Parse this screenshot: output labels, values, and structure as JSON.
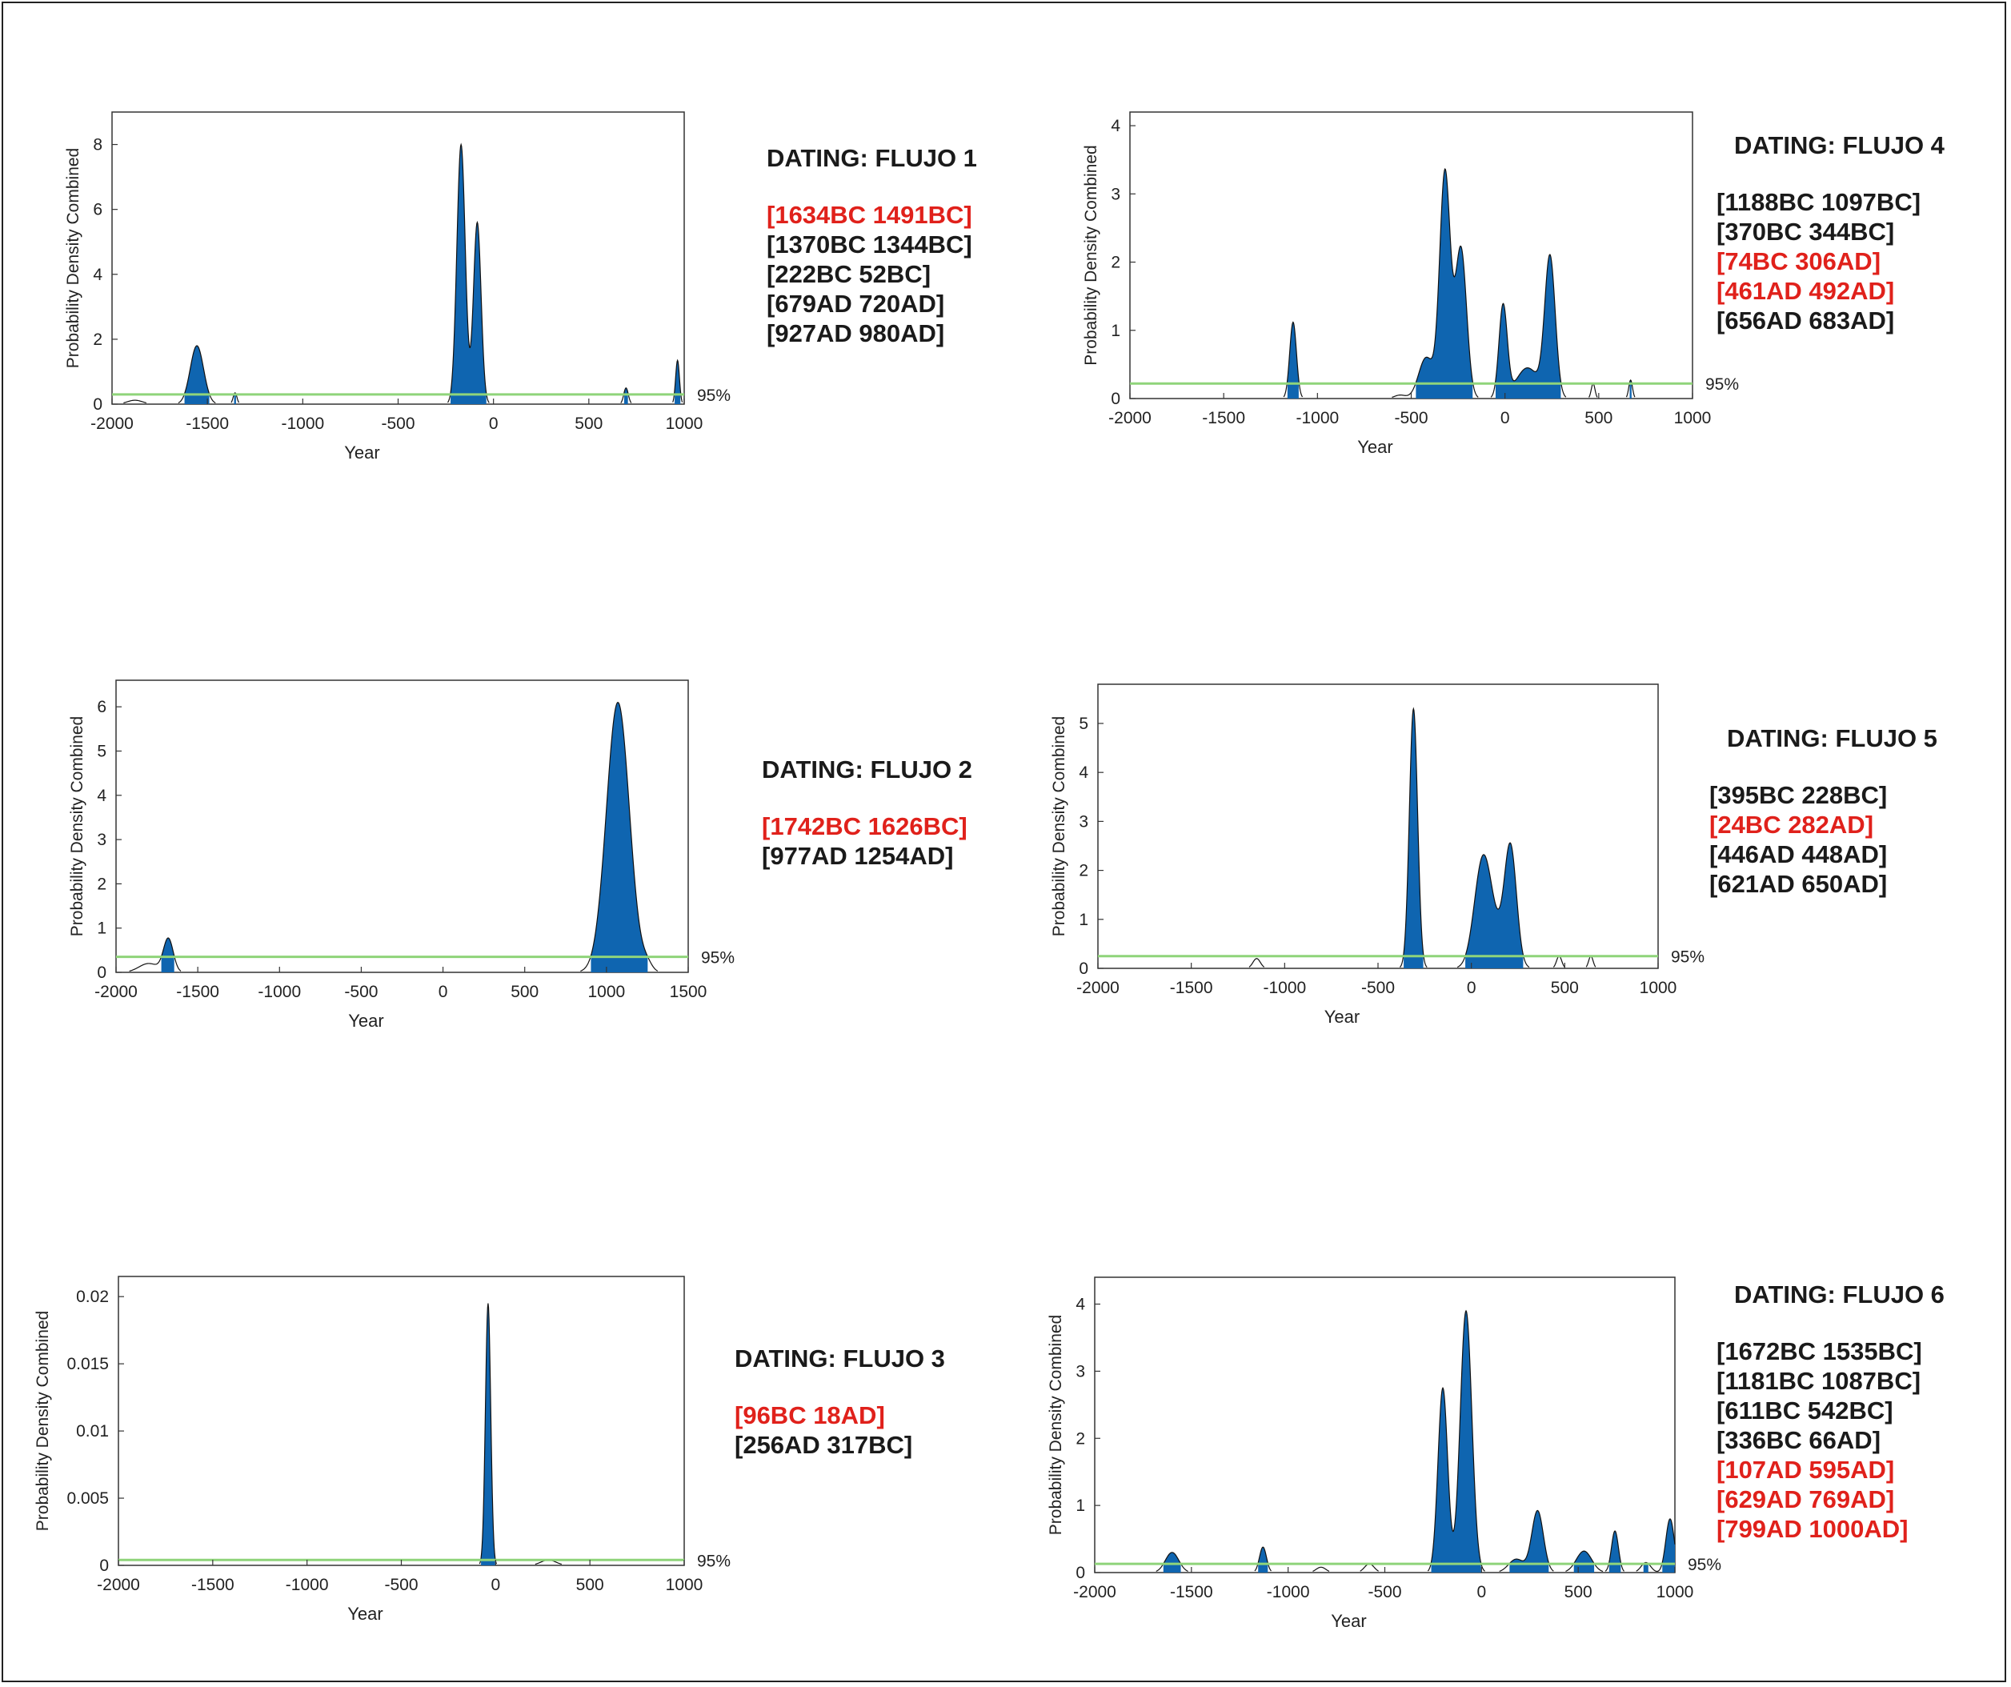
{
  "chart_data": [
    {
      "type": "area",
      "title": "DATING: FLUJO 1",
      "xlabel": "Year",
      "ylabel": "Probability Density Combined",
      "xlim": [
        -2000,
        1000
      ],
      "ylim": [
        0,
        9
      ],
      "xticks": [
        -2000,
        -1500,
        -1000,
        -500,
        0,
        500,
        1000
      ],
      "yticks": [
        0,
        2,
        4,
        6,
        8
      ],
      "ytick_labels": [
        "0",
        "2",
        "4",
        "6",
        "8"
      ],
      "threshold": 0.3,
      "threshold_label": "95%",
      "peaks": [
        {
          "center": -1880,
          "height": 0.12,
          "width": 40
        },
        {
          "center": -1555,
          "height": 1.8,
          "width": 35
        },
        {
          "center": -1355,
          "height": 0.35,
          "width": 10
        },
        {
          "center": -170,
          "height": 8.0,
          "width": 22
        },
        {
          "center": -85,
          "height": 5.6,
          "width": 20
        },
        {
          "center": 695,
          "height": 0.5,
          "width": 12
        },
        {
          "center": 965,
          "height": 1.35,
          "width": 10
        }
      ],
      "ranges": [
        {
          "text": "[1634BC   1491BC]",
          "highlight": true
        },
        {
          "text": "[1370BC   1344BC]",
          "highlight": false
        },
        {
          "text": "[222BC   52BC]",
          "highlight": false
        },
        {
          "text": "[679AD   720AD]",
          "highlight": false
        },
        {
          "text": "[927AD   980AD]",
          "highlight": false
        }
      ]
    },
    {
      "type": "area",
      "title": "DATING: FLUJO 2",
      "xlabel": "Year",
      "ylabel": "Probability Density Combined",
      "xlim": [
        -2000,
        1500
      ],
      "ylim": [
        0,
        6.6
      ],
      "xticks": [
        -2000,
        -1500,
        -1000,
        -500,
        0,
        500,
        1000,
        1500
      ],
      "yticks": [
        0,
        1,
        2,
        3,
        4,
        5,
        6
      ],
      "ytick_labels": [
        "0",
        "1",
        "2",
        "3",
        "4",
        "5",
        "6"
      ],
      "threshold": 0.35,
      "threshold_label": "95%",
      "peaks": [
        {
          "center": -1800,
          "height": 0.2,
          "width": 60
        },
        {
          "center": -1680,
          "height": 0.75,
          "width": 30
        },
        {
          "center": 1070,
          "height": 6.1,
          "width": 70
        },
        {
          "center": 1250,
          "height": 0.15,
          "width": 30
        }
      ],
      "ranges": [
        {
          "text": "[1742BC   1626BC]",
          "highlight": true
        },
        {
          "text": "[977AD   1254AD]",
          "highlight": false
        }
      ]
    },
    {
      "type": "area",
      "title": "DATING: FLUJO 3",
      "xlabel": "Year",
      "ylabel": "Probability Density Combined",
      "xlim": [
        -2000,
        1000
      ],
      "ylim": [
        0,
        0.0215
      ],
      "xticks": [
        -2000,
        -1500,
        -1000,
        -500,
        0,
        500,
        1000
      ],
      "yticks": [
        0,
        0.005,
        0.01,
        0.015,
        0.02
      ],
      "ytick_labels": [
        "0",
        "0.005",
        "0.01",
        "0.015",
        "0.02"
      ],
      "threshold": 0.0004,
      "threshold_label": "95%",
      "peaks": [
        {
          "center": -40,
          "height": 0.0195,
          "width": 14
        },
        {
          "center": 280,
          "height": 0.0004,
          "width": 40
        }
      ],
      "ranges": [
        {
          "text": "[96BC   18AD]",
          "highlight": true
        },
        {
          "text": "[256AD   317BC]",
          "highlight": false
        }
      ]
    },
    {
      "type": "area",
      "title": "DATING: FLUJO 4",
      "xlabel": "Year",
      "ylabel": "Probability Density Combined",
      "xlim": [
        -2000,
        1000
      ],
      "ylim": [
        0,
        4.2
      ],
      "xticks": [
        -2000,
        -1500,
        -1000,
        -500,
        0,
        500,
        1000
      ],
      "yticks": [
        0,
        1,
        2,
        3,
        4
      ],
      "ytick_labels": [
        "0",
        "1",
        "2",
        "3",
        "4"
      ],
      "threshold": 0.22,
      "threshold_label": "95%",
      "peaks": [
        {
          "center": -1130,
          "height": 1.12,
          "width": 18
        },
        {
          "center": -560,
          "height": 0.05,
          "width": 30
        },
        {
          "center": -420,
          "height": 0.6,
          "width": 40
        },
        {
          "center": -320,
          "height": 3.3,
          "width": 28
        },
        {
          "center": -235,
          "height": 2.2,
          "width": 30
        },
        {
          "center": -10,
          "height": 1.35,
          "width": 22
        },
        {
          "center": 120,
          "height": 0.45,
          "width": 60
        },
        {
          "center": 240,
          "height": 2.05,
          "width": 28
        },
        {
          "center": 470,
          "height": 0.22,
          "width": 10
        },
        {
          "center": 670,
          "height": 0.27,
          "width": 10
        }
      ],
      "ranges": [
        {
          "text": "[1188BC   1097BC]",
          "highlight": false
        },
        {
          "text": "[370BC   344BC]",
          "highlight": false
        },
        {
          "text": "[74BC   306AD]",
          "highlight": true
        },
        {
          "text": "[461AD   492AD]",
          "highlight": true
        },
        {
          "text": "[656AD   683AD]",
          "highlight": false
        }
      ]
    },
    {
      "type": "area",
      "title": "DATING: FLUJO 5",
      "xlabel": "Year",
      "ylabel": "Probability Density Combined",
      "xlim": [
        -2000,
        1000
      ],
      "ylim": [
        0,
        5.8
      ],
      "xticks": [
        -2000,
        -1500,
        -1000,
        -500,
        0,
        500,
        1000
      ],
      "yticks": [
        0,
        1,
        2,
        3,
        4,
        5
      ],
      "ytick_labels": [
        "0",
        "1",
        "2",
        "3",
        "4",
        "5"
      ],
      "threshold": 0.25,
      "threshold_label": "95%",
      "peaks": [
        {
          "center": -1150,
          "height": 0.2,
          "width": 20
        },
        {
          "center": -310,
          "height": 5.3,
          "width": 22
        },
        {
          "center": 60,
          "height": 2.0,
          "width": 45
        },
        {
          "center": 210,
          "height": 2.3,
          "width": 32
        },
        {
          "center": 130,
          "height": 0.6,
          "width": 60
        },
        {
          "center": 470,
          "height": 0.25,
          "width": 14
        },
        {
          "center": 640,
          "height": 0.25,
          "width": 12
        }
      ],
      "ranges": [
        {
          "text": "[395BC   228BC]",
          "highlight": false
        },
        {
          "text": "[24BC   282AD]",
          "highlight": true
        },
        {
          "text": "[446AD   448AD]",
          "highlight": false
        },
        {
          "text": "[621AD   650AD]",
          "highlight": false
        }
      ]
    },
    {
      "type": "area",
      "title": "DATING: FLUJO 6",
      "xlabel": "Year",
      "ylabel": "Probability Density Combined",
      "xlim": [
        -2000,
        1000
      ],
      "ylim": [
        0,
        4.4
      ],
      "xticks": [
        -2000,
        -1500,
        -1000,
        -500,
        0,
        500,
        1000
      ],
      "yticks": [
        0,
        1,
        2,
        3,
        4
      ],
      "ytick_labels": [
        "0",
        "1",
        "2",
        "3",
        "4"
      ],
      "threshold": 0.13,
      "threshold_label": "95%",
      "peaks": [
        {
          "center": -1600,
          "height": 0.3,
          "width": 35
        },
        {
          "center": -1130,
          "height": 0.38,
          "width": 18
        },
        {
          "center": -830,
          "height": 0.08,
          "width": 25
        },
        {
          "center": -580,
          "height": 0.13,
          "width": 25
        },
        {
          "center": -200,
          "height": 2.75,
          "width": 25
        },
        {
          "center": -80,
          "height": 3.9,
          "width": 30
        },
        {
          "center": 180,
          "height": 0.2,
          "width": 40
        },
        {
          "center": 290,
          "height": 0.92,
          "width": 30
        },
        {
          "center": 530,
          "height": 0.32,
          "width": 40
        },
        {
          "center": 690,
          "height": 0.62,
          "width": 18
        },
        {
          "center": 850,
          "height": 0.15,
          "width": 25
        },
        {
          "center": 975,
          "height": 0.8,
          "width": 22
        }
      ],
      "ranges": [
        {
          "text": "[1672BC   1535BC]",
          "highlight": false
        },
        {
          "text": "[1181BC   1087BC]",
          "highlight": false
        },
        {
          "text": "[611BC   542BC]",
          "highlight": false
        },
        {
          "text": "[336BC   66AD]",
          "highlight": false
        },
        {
          "text": "[107AD   595AD]",
          "highlight": true
        },
        {
          "text": "[629AD   769AD]",
          "highlight": true
        },
        {
          "text": "[799AD   1000AD]",
          "highlight": true
        }
      ]
    }
  ],
  "colors": {
    "fill": "#0f65b0",
    "threshold": "#8fd47a",
    "highlight_text": "#e0211b",
    "normal_text": "#1a1a1a"
  }
}
